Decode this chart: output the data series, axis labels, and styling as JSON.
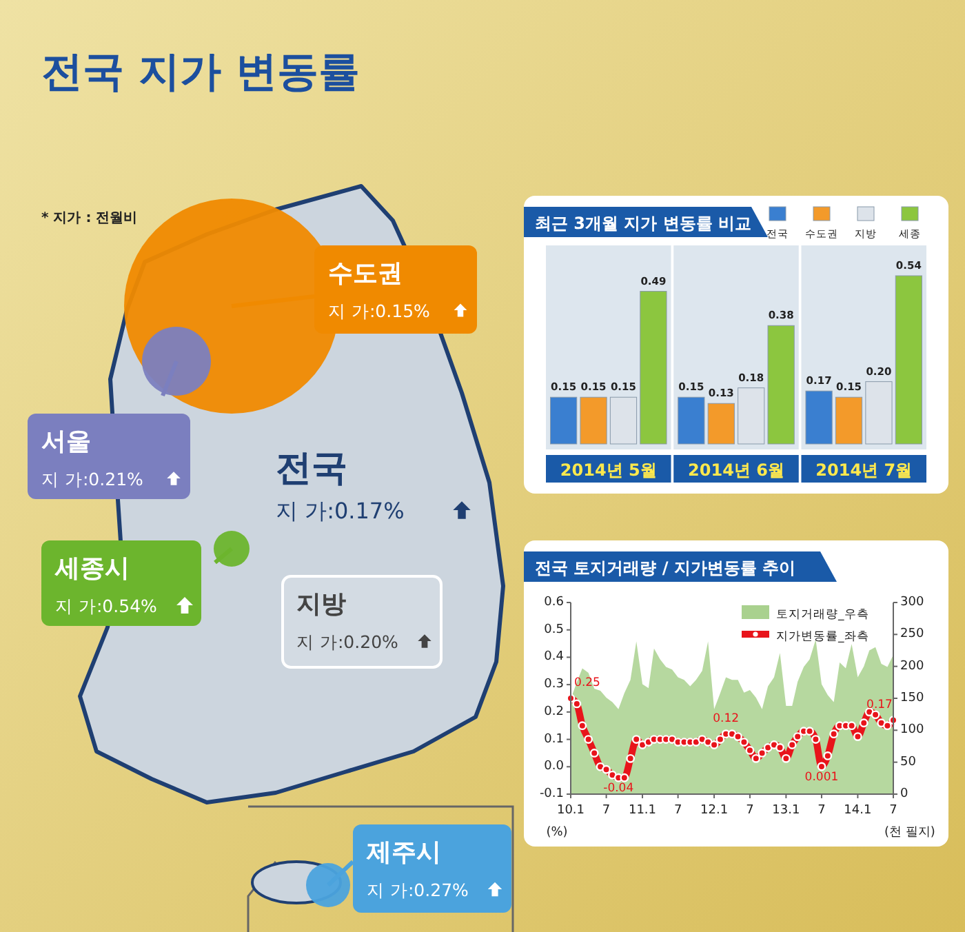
{
  "chart_data": [
    {
      "type": "other",
      "title": "전국 지가 변동률",
      "annotations": [
        "* 지가 : 전월비"
      ],
      "categories": [
        "수도권",
        "서울",
        "세종시",
        "지방",
        "전국",
        "제주시"
      ],
      "values": [
        0.15,
        0.21,
        0.54,
        0.2,
        0.17,
        0.27
      ],
      "value_labels": [
        "지 가:0.15%",
        "지 가:0.21%",
        "지 가:0.54%",
        "지 가:0.20%",
        "지 가:0.17%",
        "지 가:0.27%"
      ],
      "colors": [
        "#f08a00",
        "#7b7fbf",
        "#6cb52d",
        "#d3dbe3",
        "#1f3f72",
        "#4ba3dd"
      ]
    },
    {
      "type": "bar",
      "title": "최근 3개월 지가 변동률 비교",
      "categories": [
        "2014년 5월",
        "2014년 6월",
        "2014년 7월"
      ],
      "legend": "top right",
      "series": [
        {
          "name": "전국",
          "color": "#3a7fd0",
          "values": [
            0.15,
            0.15,
            0.17
          ],
          "value_labels": [
            "0.15",
            "0.15",
            "0.17"
          ]
        },
        {
          "name": "수도권",
          "color": "#f39a2a",
          "values": [
            0.15,
            0.13,
            0.15
          ],
          "value_labels": [
            "0.15",
            "0.13",
            "0.15"
          ]
        },
        {
          "name": "지방",
          "color": "#dde3ea",
          "values": [
            0.15,
            0.18,
            0.2
          ],
          "value_labels": [
            "0.15",
            "0.18",
            "0.20"
          ]
        },
        {
          "name": "세종",
          "color": "#8cc63f",
          "values": [
            0.49,
            0.38,
            0.54
          ],
          "value_labels": [
            "0.49",
            "0.38",
            "0.54"
          ]
        }
      ]
    },
    {
      "type": "line",
      "title": "전국 토지거래량 / 지가변동률 추이",
      "ylabel": "(%)",
      "y2label": "(천 필지)",
      "legend": "top right",
      "xlim": [
        "2010-01",
        "2014-07"
      ],
      "xticks": [
        {
          "value": "2010-01",
          "label": "10.1"
        },
        {
          "value": "2010-07",
          "label": "7"
        },
        {
          "value": "2011-01",
          "label": "11.1"
        },
        {
          "value": "2011-07",
          "label": "7"
        },
        {
          "value": "2012-01",
          "label": "12.1"
        },
        {
          "value": "2012-07",
          "label": "7"
        },
        {
          "value": "2013-01",
          "label": "13.1"
        },
        {
          "value": "2013-07",
          "label": "7"
        },
        {
          "value": "2014-01",
          "label": "14.1"
        },
        {
          "value": "2014-07",
          "label": "7"
        }
      ],
      "ylim": [
        -0.1,
        0.6
      ],
      "yticks": [
        -0.1,
        {
          "value": 0,
          "label": "0.0"
        },
        0.1,
        0.2,
        0.3,
        0.4,
        0.5,
        0.6
      ],
      "y2lim": [
        0,
        300
      ],
      "y2ticks": [
        0,
        50,
        100,
        150,
        200,
        250,
        300
      ],
      "x": [
        "2010-01",
        "2010-02",
        "2010-03",
        "2010-04",
        "2010-05",
        "2010-06",
        "2010-07",
        "2010-08",
        "2010-09",
        "2010-10",
        "2010-11",
        "2010-12",
        "2011-01",
        "2011-02",
        "2011-03",
        "2011-04",
        "2011-05",
        "2011-06",
        "2011-07",
        "2011-08",
        "2011-09",
        "2011-10",
        "2011-11",
        "2011-12",
        "2012-01",
        "2012-02",
        "2012-03",
        "2012-04",
        "2012-05",
        "2012-06",
        "2012-07",
        "2012-08",
        "2012-09",
        "2012-10",
        "2012-11",
        "2012-12",
        "2013-01",
        "2013-02",
        "2013-03",
        "2013-04",
        "2013-05",
        "2013-06",
        "2013-07",
        "2013-08",
        "2013-09",
        "2013-10",
        "2013-11",
        "2013-12",
        "2014-01",
        "2014-02",
        "2014-03",
        "2014-04",
        "2014-05",
        "2014-06",
        "2014-07"
      ],
      "series": [
        {
          "name": "토지거래량_우측",
          "type": "area",
          "axis": "y2",
          "color": "#a9d18e",
          "values": [
            149,
            175,
            197,
            190,
            165,
            162,
            151,
            144,
            133,
            158,
            179,
            239,
            172,
            166,
            228,
            211,
            199,
            195,
            183,
            179,
            169,
            179,
            193,
            239,
            133,
            158,
            183,
            179,
            179,
            159,
            163,
            151,
            133,
            169,
            183,
            221,
            138,
            138,
            176,
            199,
            211,
            242,
            172,
            155,
            144,
            206,
            197,
            235,
            183,
            200,
            225,
            230,
            204,
            199,
            218
          ]
        },
        {
          "name": "지가변동률_좌측",
          "type": "line",
          "marker": "circle",
          "color": "#e8141b",
          "values": [
            0.25,
            0.23,
            0.15,
            0.1,
            0.05,
            0.0,
            -0.01,
            -0.03,
            -0.04,
            -0.04,
            0.03,
            0.1,
            0.08,
            0.09,
            0.1,
            0.1,
            0.1,
            0.1,
            0.09,
            0.09,
            0.09,
            0.09,
            0.1,
            0.09,
            0.08,
            0.1,
            0.12,
            0.12,
            0.11,
            0.09,
            0.06,
            0.03,
            0.05,
            0.07,
            0.08,
            0.07,
            0.03,
            0.08,
            0.11,
            0.13,
            0.13,
            0.1,
            0.001,
            0.04,
            0.12,
            0.15,
            0.15,
            0.15,
            0.11,
            0.16,
            0.2,
            0.19,
            0.16,
            0.15,
            0.17
          ]
        }
      ],
      "annotations": [
        {
          "text": "0.25",
          "x": "2010-01",
          "y": 0.25
        },
        {
          "text": "-0.04",
          "x": "2010-09",
          "y": -0.04
        },
        {
          "text": "0.12",
          "x": "2012-03",
          "y": 0.12
        },
        {
          "text": "0.001",
          "x": "2013-07",
          "y": 0.001
        },
        {
          "text": "0.17",
          "x": "2014-07",
          "y": 0.17
        }
      ]
    }
  ]
}
